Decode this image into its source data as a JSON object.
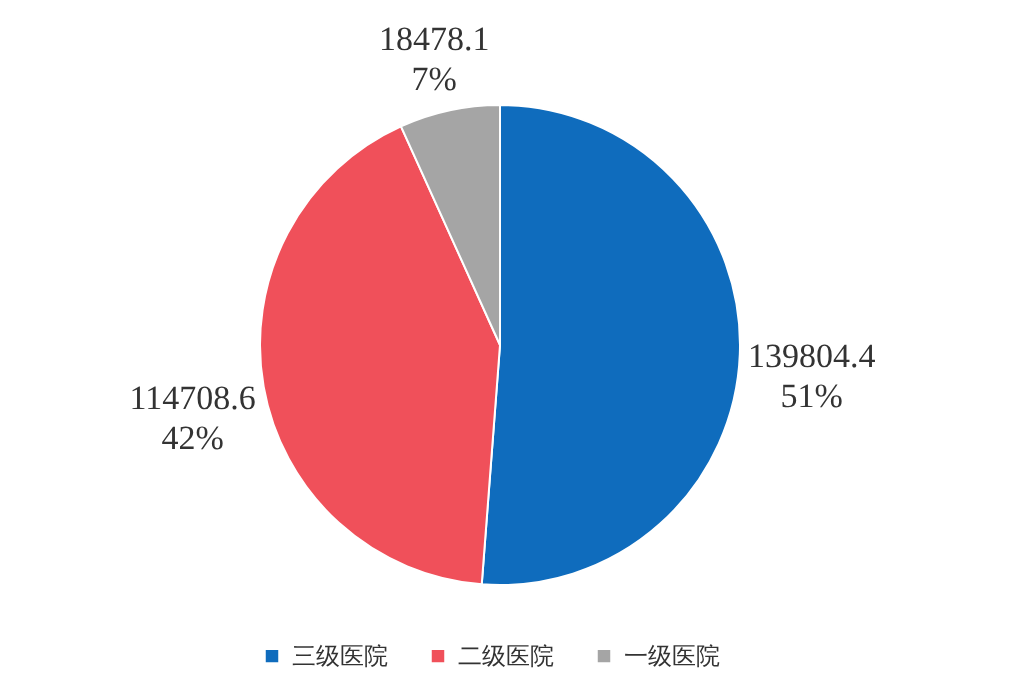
{
  "chart_data": {
    "type": "pie",
    "categories": [
      "三级医院",
      "二级医院",
      "一级医院"
    ],
    "values": [
      139804.4,
      114708.6,
      18478.1
    ],
    "colors": [
      "#0f6cbd",
      "#f0505a",
      "#a5a5a5"
    ],
    "value_labels": [
      "139804.4\n51%",
      "114708.6\n42%",
      "18478.1\n7%"
    ],
    "legend": "bottom"
  }
}
